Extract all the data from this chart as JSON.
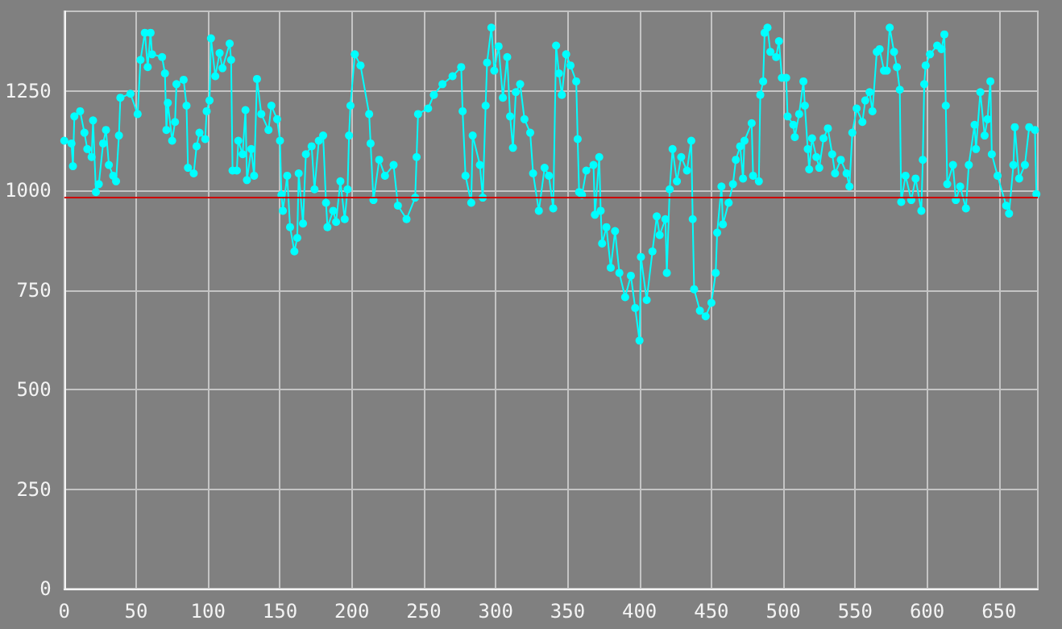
{
  "chart_data": {
    "type": "line",
    "xlim": [
      0,
      677
    ],
    "xticks": [
      0,
      50,
      100,
      150,
      200,
      250,
      300,
      350,
      400,
      450,
      500,
      550,
      600,
      650
    ],
    "ylim": [
      0,
      1450
    ],
    "yticks": [
      0,
      250,
      500,
      750,
      1000,
      1250
    ],
    "grid": true,
    "marker": "circle",
    "line_style": "solid",
    "ref_lines": [
      {
        "axis": "y",
        "value": 983,
        "color": "#cc0000"
      }
    ],
    "series": [
      {
        "color": "#00ffff",
        "x": [
          0,
          5,
          6,
          7,
          11,
          14,
          16,
          19,
          20,
          22,
          24,
          27,
          29,
          31,
          34,
          36,
          38,
          39,
          46,
          51,
          53,
          56,
          58,
          60,
          61,
          68,
          70,
          71,
          72,
          75,
          77,
          78,
          83,
          85,
          86,
          90,
          92,
          94,
          98,
          99,
          101,
          102,
          105,
          108,
          110,
          115,
          116,
          117,
          120,
          121,
          124,
          126,
          127,
          130,
          132,
          134,
          137,
          142,
          144,
          148,
          150,
          151,
          152,
          155,
          157,
          160,
          162,
          163,
          166,
          168,
          172,
          174,
          177,
          180,
          182,
          183,
          187,
          189,
          192,
          195,
          197,
          198,
          199,
          202,
          206,
          212,
          213,
          215,
          219,
          223,
          229,
          232,
          238,
          244,
          245,
          246,
          253,
          257,
          263,
          270,
          276,
          277,
          279,
          283,
          284,
          289,
          291,
          293,
          294,
          297,
          299,
          302,
          305,
          308,
          310,
          312,
          314,
          317,
          320,
          324,
          326,
          330,
          334,
          337,
          340,
          342,
          344,
          346,
          349,
          352,
          356,
          357,
          358,
          360,
          363,
          368,
          369,
          372,
          373,
          374,
          377,
          380,
          383,
          386,
          390,
          394,
          397,
          400,
          401,
          405,
          409,
          412,
          414,
          418,
          419,
          421,
          423,
          426,
          429,
          433,
          436,
          437,
          438,
          442,
          446,
          450,
          453,
          454,
          457,
          458,
          462,
          465,
          467,
          470,
          472,
          473,
          478,
          479,
          483,
          484,
          486,
          487,
          489,
          491,
          495,
          497,
          499,
          502,
          503,
          507,
          508,
          511,
          514,
          515,
          517,
          518,
          520,
          523,
          525,
          528,
          531,
          534,
          536,
          540,
          544,
          546,
          548,
          551,
          555,
          557,
          560,
          562,
          565,
          567,
          570,
          572,
          574,
          577,
          579,
          581,
          582,
          585,
          589,
          592,
          596,
          597,
          598,
          599,
          602,
          607,
          610,
          612,
          613,
          614,
          618,
          620,
          623,
          627,
          629,
          633,
          634,
          637,
          640,
          642,
          644,
          645,
          649,
          655,
          657,
          660,
          661,
          664,
          668,
          671,
          675,
          676
        ],
        "values": [
          1125,
          1118,
          1061,
          1186,
          1199,
          1145,
          1104,
          1084,
          1176,
          996,
          1016,
          1118,
          1152,
          1064,
          1037,
          1023,
          1138,
          1233,
          1243,
          1192,
          1328,
          1396,
          1310,
          1396,
          1342,
          1335,
          1294,
          1152,
          1220,
          1125,
          1172,
          1267,
          1278,
          1213,
          1057,
          1043,
          1111,
          1145,
          1129,
          1199,
          1226,
          1382,
          1287,
          1345,
          1307,
          1369,
          1328,
          1050,
          1050,
          1125,
          1091,
          1202,
          1026,
          1104,
          1037,
          1280,
          1192,
          1152,
          1213,
          1179,
          1125,
          989,
          949,
          1037,
          908,
          847,
          881,
          1043,
          917,
          1091,
          1111,
          1003,
          1125,
          1138,
          969,
          908,
          949,
          921,
          1023,
          928,
          1003,
          1138,
          1213,
          1342,
          1314,
          1192,
          1118,
          976,
          1077,
          1037,
          1064,
          962,
          928,
          982,
          1084,
          1192,
          1206,
          1240,
          1267,
          1287,
          1310,
          1199,
          1037,
          969,
          1138,
          1064,
          982,
          1213,
          1321,
          1409,
          1301,
          1362,
          1233,
          1335,
          1186,
          1107,
          1247,
          1267,
          1179,
          1145,
          1043,
          949,
          1057,
          1037,
          955,
          1364,
          1294,
          1240,
          1342,
          1314,
          1274,
          1129,
          996,
          989,
          1050,
          1064,
          939,
          1084,
          949,
          867,
          908,
          806,
          898,
          793,
          732,
          786,
          705,
          623,
          833,
          725,
          847,
          935,
          888,
          928,
          793,
          1003,
          1104,
          1023,
          1084,
          1050,
          1125,
          928,
          752,
          698,
          684,
          718,
          793,
          894,
          1010,
          915,
          969,
          1016,
          1077,
          1111,
          1030,
          1125,
          1169,
          1037,
          1023,
          1240,
          1274,
          1396,
          1409,
          1348,
          1335,
          1375,
          1283,
          1283,
          1186,
          1165,
          1134,
          1192,
          1274,
          1213,
          1104,
          1053,
          1131,
          1084,
          1057,
          1131,
          1156,
          1091,
          1043,
          1077,
          1043,
          1010,
          1145,
          1206,
          1172,
          1226,
          1247,
          1199,
          1348,
          1355,
          1301,
          1301,
          1409,
          1348,
          1310,
          1253,
          971,
          1037,
          976,
          1030,
          949,
          1077,
          1267,
          1314,
          1342,
          1364,
          1355,
          1392,
          1213,
          1016,
          1064,
          976,
          1010,
          955,
          1064,
          1165,
          1104,
          1247,
          1138,
          1179,
          1274,
          1091,
          1037,
          962,
          942,
          1064,
          1159,
          1030,
          1064,
          1159,
          1152,
          991
        ]
      }
    ]
  }
}
